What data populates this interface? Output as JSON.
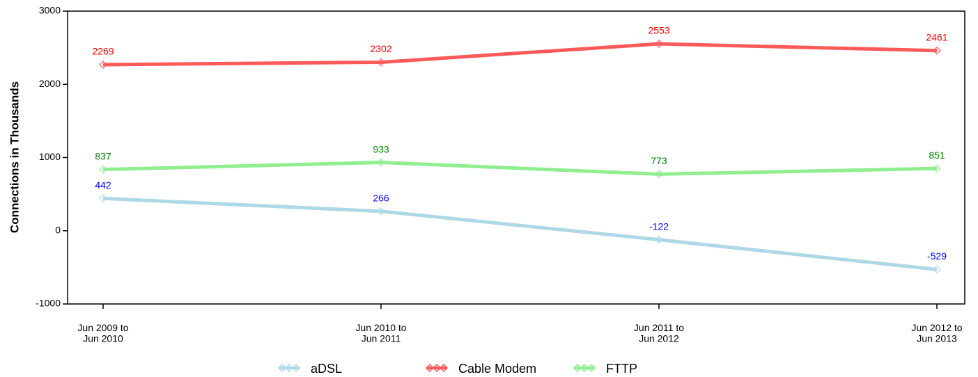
{
  "chart_data": {
    "type": "line",
    "y_label": "Connections in Thousands",
    "categories": [
      "Jun 2009 to\nJun 2010",
      "Jun 2010 to\nJun 2011",
      "Jun 2011 to\nJun 2012",
      "Jun 2012 to\nJun 2013"
    ],
    "series": [
      {
        "name": "aDSL",
        "color": "#add8e6",
        "label_color": "#0000ff",
        "values": [
          442,
          266,
          -122,
          -529
        ]
      },
      {
        "name": "Cable Modem",
        "color": "#ff5a5a",
        "label_color": "#ff0000",
        "values": [
          2269,
          2302,
          2553,
          2461
        ]
      },
      {
        "name": "FTTP",
        "color": "#90ee90",
        "label_color": "#008000",
        "values": [
          837,
          933,
          773,
          851
        ]
      }
    ],
    "ylim": [
      -1000,
      3000
    ],
    "yticks": [
      -1000,
      0,
      1000,
      2000,
      3000
    ],
    "legend": "bottom"
  }
}
